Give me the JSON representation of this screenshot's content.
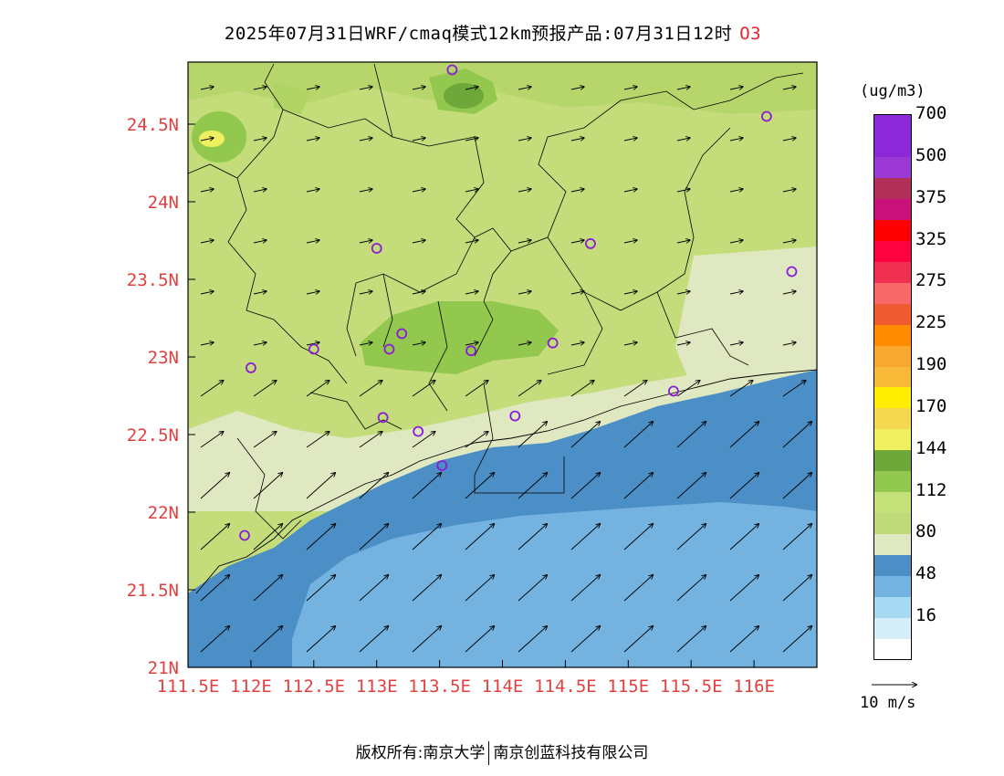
{
  "title": {
    "text": "2025年07月31日WRF/cmaq模式12km预报产品:07月31日12时",
    "species": "O3"
  },
  "map": {
    "lon_range": [
      111.5,
      116.5
    ],
    "lat_range": [
      21.0,
      24.9
    ],
    "lon_ticks": [
      "111.5E",
      "112E",
      "112.5E",
      "113E",
      "113.5E",
      "114E",
      "114.5E",
      "115E",
      "115.5E",
      "116E"
    ],
    "lat_ticks": [
      "21N",
      "21.5N",
      "22N",
      "22.5N",
      "23N",
      "23.5N",
      "24N",
      "24.5N"
    ],
    "axis_label_color": "#e04040",
    "wind_direction": "southwest",
    "stations": [
      {
        "lon": 113.6,
        "lat": 24.85
      },
      {
        "lon": 116.1,
        "lat": 24.55
      },
      {
        "lon": 113.0,
        "lat": 23.7
      },
      {
        "lon": 114.7,
        "lat": 23.73
      },
      {
        "lon": 116.3,
        "lat": 23.55
      },
      {
        "lon": 113.2,
        "lat": 23.15
      },
      {
        "lon": 112.5,
        "lat": 23.05
      },
      {
        "lon": 113.1,
        "lat": 23.05
      },
      {
        "lon": 113.75,
        "lat": 23.04
      },
      {
        "lon": 114.4,
        "lat": 23.09
      },
      {
        "lon": 112.0,
        "lat": 22.93
      },
      {
        "lon": 115.36,
        "lat": 22.78
      },
      {
        "lon": 113.05,
        "lat": 22.61
      },
      {
        "lon": 114.1,
        "lat": 22.62
      },
      {
        "lon": 113.33,
        "lat": 22.52
      },
      {
        "lon": 113.52,
        "lat": 22.3
      },
      {
        "lon": 111.95,
        "lat": 21.85
      }
    ]
  },
  "colorbar": {
    "unit": "(ug/m3)",
    "segments": [
      "#ffffff",
      "#d6eef8",
      "#a6d9f2",
      "#74b3e0",
      "#4c8fc6",
      "#dfe8c0",
      "#bfda78",
      "#c4e078",
      "#93c84e",
      "#6fa83a",
      "#eef060",
      "#f4d850",
      "#ffee00",
      "#f8b838",
      "#f8a830",
      "#ff8c00",
      "#f05a30",
      "#f86868",
      "#f03050",
      "#ff0040",
      "#ff0000",
      "#c8127a",
      "#b0305a",
      "#9c38d4",
      "#8c28d8"
    ],
    "ticks": [
      {
        "label": "16",
        "index": 2
      },
      {
        "label": "48",
        "index": 4
      },
      {
        "label": "80",
        "index": 6
      },
      {
        "label": "112",
        "index": 8
      },
      {
        "label": "144",
        "index": 10
      },
      {
        "label": "170",
        "index": 12
      },
      {
        "label": "190",
        "index": 14
      },
      {
        "label": "225",
        "index": 16
      },
      {
        "label": "275",
        "index": 18
      },
      {
        "label": "325",
        "index": 20
      },
      {
        "label": "375",
        "index": 22
      },
      {
        "label": "500",
        "index": 24
      },
      {
        "label": "700",
        "index": 26
      }
    ]
  },
  "wind_reference": {
    "label": "10 m/s"
  },
  "footer": {
    "left": "版权所有:南京大学",
    "right": "南京创蓝科技有限公司"
  }
}
